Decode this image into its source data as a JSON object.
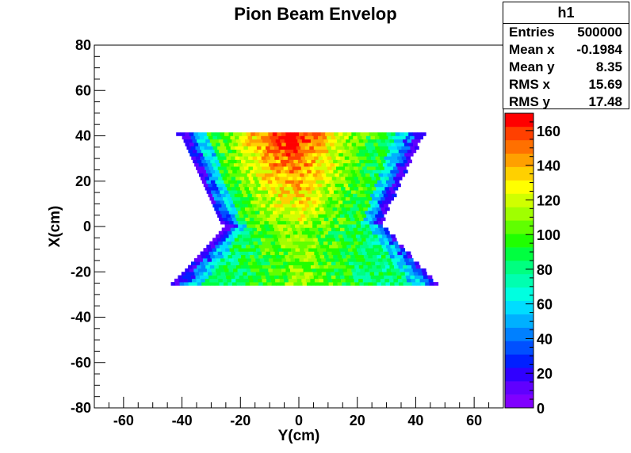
{
  "chart_data": {
    "type": "heatmap",
    "title": "Pion Beam Envelop",
    "xlabel": "Y(cm)",
    "ylabel": "X(cm)",
    "xlim": [
      -70,
      70
    ],
    "ylim": [
      -80,
      80
    ],
    "xticks": [
      -60,
      -40,
      -20,
      0,
      20,
      40,
      60
    ],
    "yticks": [
      -80,
      -60,
      -40,
      -20,
      0,
      20,
      40,
      60,
      80
    ],
    "zlim": [
      0,
      170
    ],
    "zticks": [
      0,
      20,
      40,
      60,
      80,
      100,
      120,
      140,
      160
    ],
    "palette": [
      "#8000ff",
      "#6000ff",
      "#3000ff",
      "#0020ff",
      "#0050ff",
      "#0080ff",
      "#00b0ff",
      "#00ddff",
      "#00ffe0",
      "#00ffb0",
      "#00ff80",
      "#00ff40",
      "#20ff00",
      "#60ff00",
      "#a0ff00",
      "#d0ff00",
      "#ffff00",
      "#ffd000",
      "#ffa000",
      "#ff7000",
      "#ff4000",
      "#ff0000"
    ],
    "envelope": {
      "description_points": [
        {
          "x_cm": 40,
          "half_width_cm": 40
        },
        {
          "x_cm": 30,
          "half_width_cm": 38
        },
        {
          "x_cm": 20,
          "half_width_cm": 33
        },
        {
          "x_cm": 5,
          "half_width_cm": 28
        },
        {
          "x_cm": 0,
          "half_width_cm": 26
        },
        {
          "x_cm": -10,
          "half_width_cm": 30
        },
        {
          "x_cm": -20,
          "half_width_cm": 38
        },
        {
          "x_cm": -25,
          "half_width_cm": 42
        }
      ],
      "peak_region": {
        "y_cm": -5,
        "x_cm": 32,
        "value": 165
      }
    },
    "stats": {
      "name": "h1",
      "rows": [
        {
          "label": "Entries",
          "value": "500000"
        },
        {
          "label": "Mean x",
          "value": "-0.1984"
        },
        {
          "label": "Mean y",
          "value": "8.35"
        },
        {
          "label": "RMS x",
          "value": "15.69"
        },
        {
          "label": "RMS y",
          "value": "17.48"
        }
      ]
    }
  }
}
